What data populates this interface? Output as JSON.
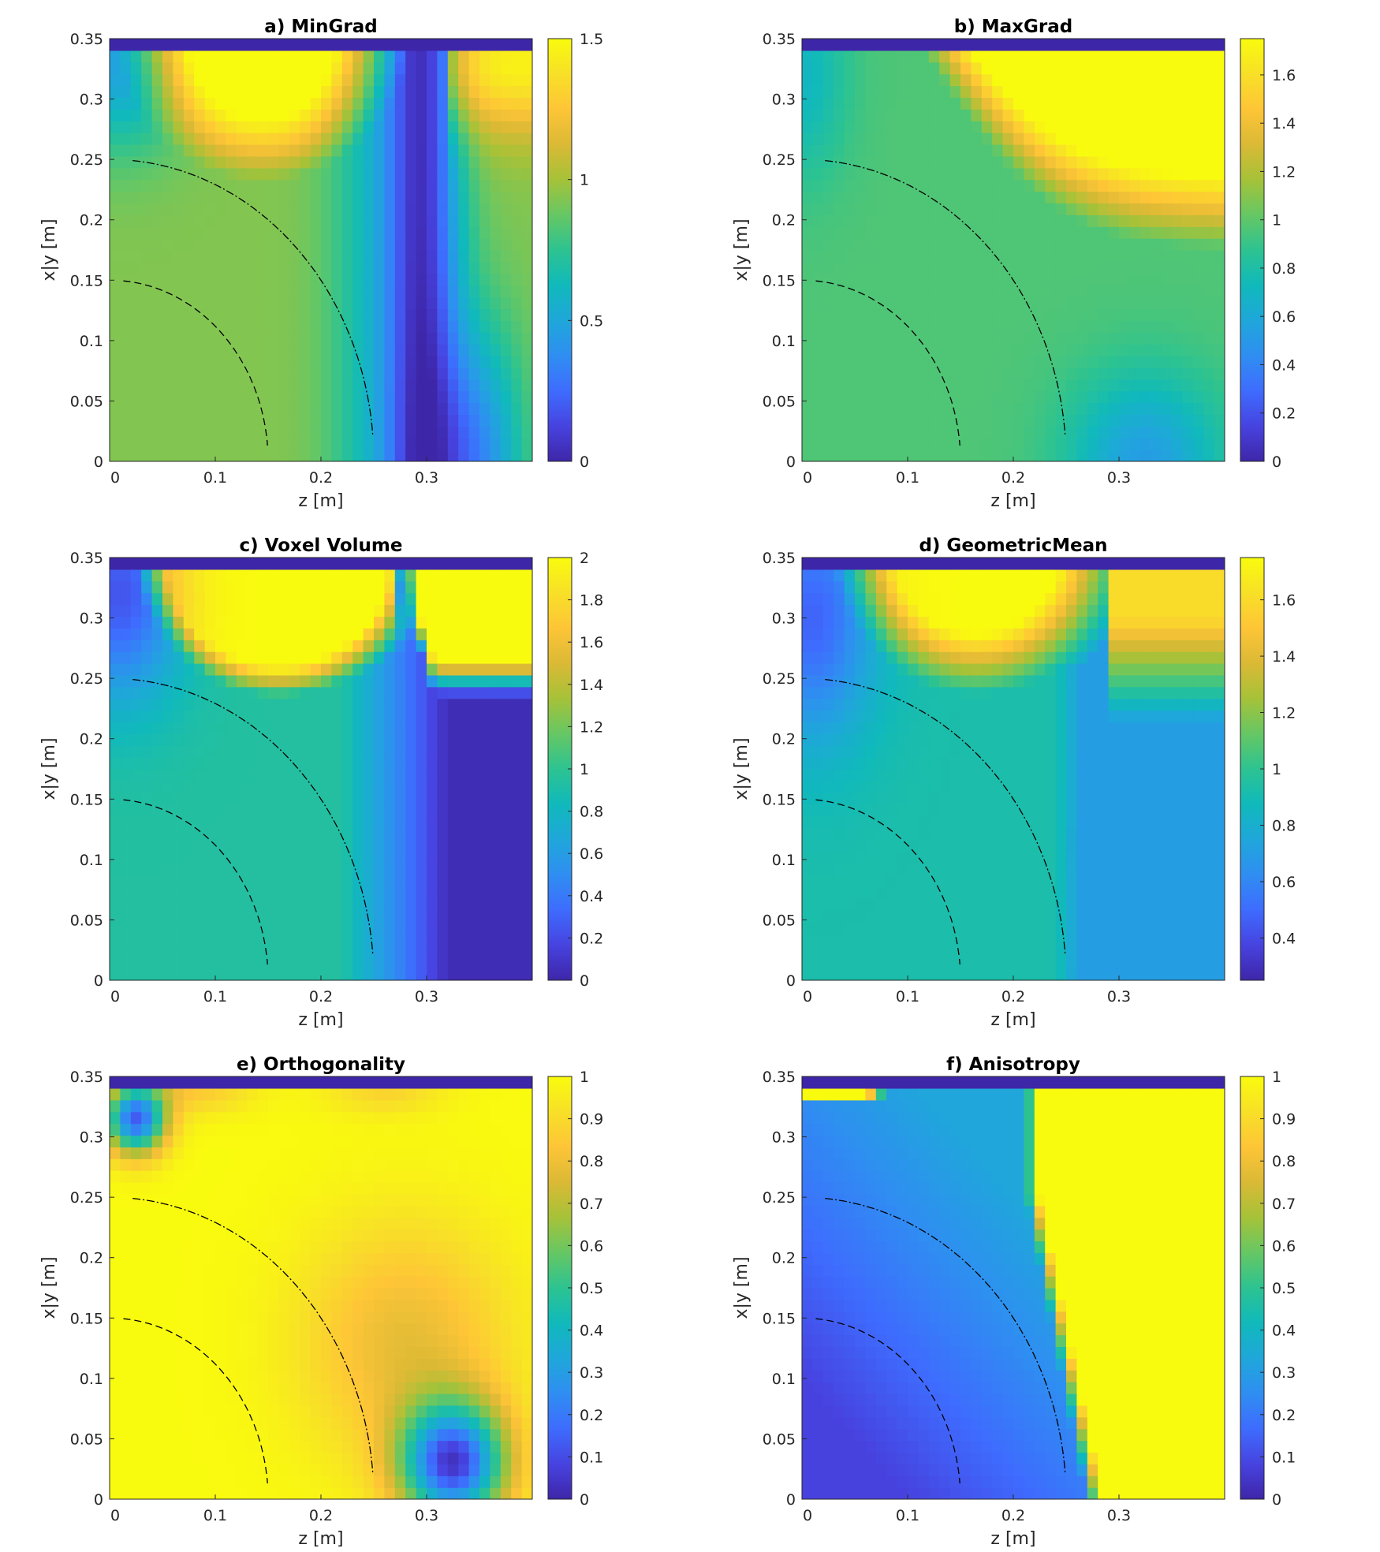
{
  "colormap": {
    "name": "parula",
    "stops": [
      "#3e26a8",
      "#4743e0",
      "#3e6cfe",
      "#2f8ef1",
      "#1fa7da",
      "#10b9bb",
      "#2dc391",
      "#66c764",
      "#a6c238",
      "#dbb935",
      "#fec537",
      "#f8e027",
      "#f9fb0e"
    ]
  },
  "guide_lines": {
    "inner_radius_label": "0.15",
    "outer_radius_label": "0.25",
    "inner_style": "dashed",
    "outer_style": "dash-dot"
  },
  "chart_data": [
    {
      "type": "heatmap",
      "key": "a",
      "title": "a) MinGrad",
      "xlabel": "z [m]",
      "ylabel": "x|y [m]",
      "xlim": [
        0,
        0.4
      ],
      "ylim": [
        0,
        0.35
      ],
      "xticks": [
        "0",
        "0.1",
        "0.2",
        "0.3"
      ],
      "yticks": [
        "0",
        "0.05",
        "0.1",
        "0.15",
        "0.2",
        "0.25",
        "0.3",
        "0.35"
      ],
      "clim": [
        0,
        1.5
      ],
      "cticks": [
        "0",
        "0.5",
        "1",
        "1.5"
      ],
      "cticks_values": [
        0,
        0.5,
        1,
        1.5
      ]
    },
    {
      "type": "heatmap",
      "key": "b",
      "title": "b) MaxGrad",
      "xlabel": "z [m]",
      "ylabel": "x|y [m]",
      "xlim": [
        0,
        0.4
      ],
      "ylim": [
        0,
        0.35
      ],
      "xticks": [
        "0",
        "0.1",
        "0.2",
        "0.3"
      ],
      "yticks": [
        "0",
        "0.05",
        "0.1",
        "0.15",
        "0.2",
        "0.25",
        "0.3",
        "0.35"
      ],
      "clim": [
        0,
        1.75
      ],
      "cticks": [
        "0",
        "0.2",
        "0.4",
        "0.6",
        "0.8",
        "1",
        "1.2",
        "1.4",
        "1.6"
      ],
      "cticks_values": [
        0,
        0.2,
        0.4,
        0.6,
        0.8,
        1,
        1.2,
        1.4,
        1.6
      ]
    },
    {
      "type": "heatmap",
      "key": "c",
      "title": "c) Voxel Volume",
      "xlabel": "z [m]",
      "ylabel": "x|y [m]",
      "xlim": [
        0,
        0.4
      ],
      "ylim": [
        0,
        0.35
      ],
      "xticks": [
        "0",
        "0.1",
        "0.2",
        "0.3"
      ],
      "yticks": [
        "0",
        "0.05",
        "0.1",
        "0.15",
        "0.2",
        "0.25",
        "0.3",
        "0.35"
      ],
      "clim": [
        0,
        2
      ],
      "cticks": [
        "0",
        "0.2",
        "0.4",
        "0.6",
        "0.8",
        "1",
        "1.2",
        "1.4",
        "1.6",
        "1.8",
        "2"
      ],
      "cticks_values": [
        0,
        0.2,
        0.4,
        0.6,
        0.8,
        1,
        1.2,
        1.4,
        1.6,
        1.8,
        2
      ]
    },
    {
      "type": "heatmap",
      "key": "d",
      "title": "d) GeometricMean",
      "xlabel": "z [m]",
      "ylabel": "x|y [m]",
      "xlim": [
        0,
        0.4
      ],
      "ylim": [
        0,
        0.35
      ],
      "xticks": [
        "0",
        "0.1",
        "0.2",
        "0.3"
      ],
      "yticks": [
        "0",
        "0.05",
        "0.1",
        "0.15",
        "0.2",
        "0.25",
        "0.3",
        "0.35"
      ],
      "clim": [
        0.25,
        1.75
      ],
      "cticks": [
        "0.4",
        "0.6",
        "0.8",
        "1",
        "1.2",
        "1.4",
        "1.6"
      ],
      "cticks_values": [
        0.4,
        0.6,
        0.8,
        1,
        1.2,
        1.4,
        1.6
      ]
    },
    {
      "type": "heatmap",
      "key": "e",
      "title": "e) Orthogonality",
      "xlabel": "z [m]",
      "ylabel": "x|y [m]",
      "xlim": [
        0,
        0.4
      ],
      "ylim": [
        0,
        0.35
      ],
      "xticks": [
        "0",
        "0.1",
        "0.2",
        "0.3"
      ],
      "yticks": [
        "0",
        "0.05",
        "0.1",
        "0.15",
        "0.2",
        "0.25",
        "0.3",
        "0.35"
      ],
      "clim": [
        0,
        1
      ],
      "cticks": [
        "0",
        "0.1",
        "0.2",
        "0.3",
        "0.4",
        "0.5",
        "0.6",
        "0.7",
        "0.8",
        "0.9",
        "1"
      ],
      "cticks_values": [
        0,
        0.1,
        0.2,
        0.3,
        0.4,
        0.5,
        0.6,
        0.7,
        0.8,
        0.9,
        1
      ]
    },
    {
      "type": "heatmap",
      "key": "f",
      "title": "f) Anisotropy",
      "xlabel": "z [m]",
      "ylabel": "x|y [m]",
      "xlim": [
        0,
        0.4
      ],
      "ylim": [
        0,
        0.35
      ],
      "xticks": [
        "0",
        "0.1",
        "0.2",
        "0.3"
      ],
      "yticks": [
        "0",
        "0.05",
        "0.1",
        "0.15",
        "0.2",
        "0.25",
        "0.3",
        "0.35"
      ],
      "clim": [
        0,
        1
      ],
      "cticks": [
        "0",
        "0.1",
        "0.2",
        "0.3",
        "0.4",
        "0.5",
        "0.6",
        "0.7",
        "0.8",
        "0.9",
        "1"
      ],
      "cticks_values": [
        0,
        0.1,
        0.2,
        0.3,
        0.4,
        0.5,
        0.6,
        0.7,
        0.8,
        0.9,
        1
      ]
    }
  ]
}
